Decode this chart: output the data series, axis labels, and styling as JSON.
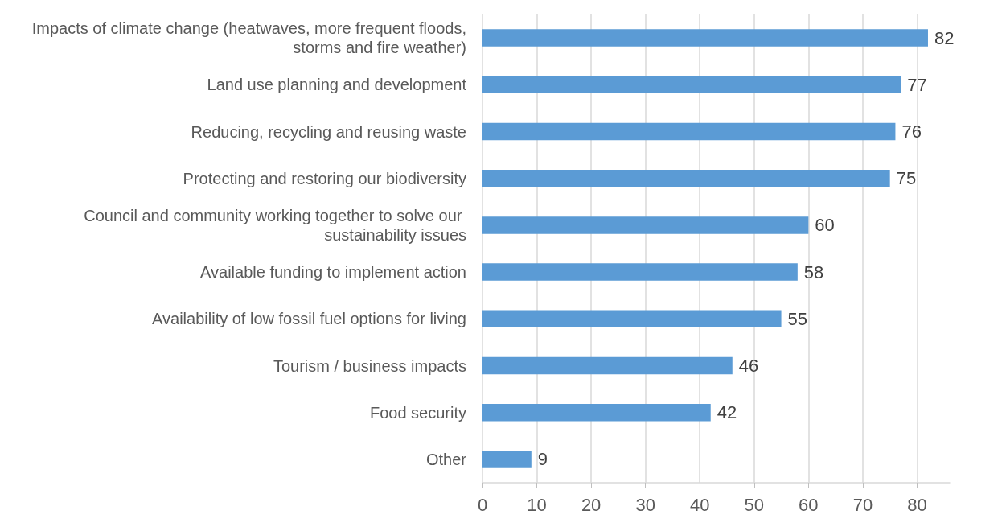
{
  "chart_data": {
    "type": "bar",
    "orientation": "horizontal",
    "categories": [
      "Impacts of climate change (heatwaves, more frequent floods, storms and fire weather)",
      "Land use planning and development",
      "Reducing, recycling and reusing waste",
      "Protecting and restoring our biodiversity",
      "Council and community working together to solve our sustainability issues",
      "Available funding to implement action",
      "Availability of low fossil fuel options for living",
      "Tourism / business impacts",
      "Food security",
      "Other"
    ],
    "values": [
      82,
      77,
      76,
      75,
      60,
      58,
      55,
      46,
      42,
      9
    ],
    "color": "#5b9bd5",
    "xlim": [
      0,
      86
    ],
    "xticks": [
      0,
      10,
      20,
      30,
      40,
      50,
      60,
      70,
      80
    ],
    "grid": "x",
    "data_labels": true
  }
}
